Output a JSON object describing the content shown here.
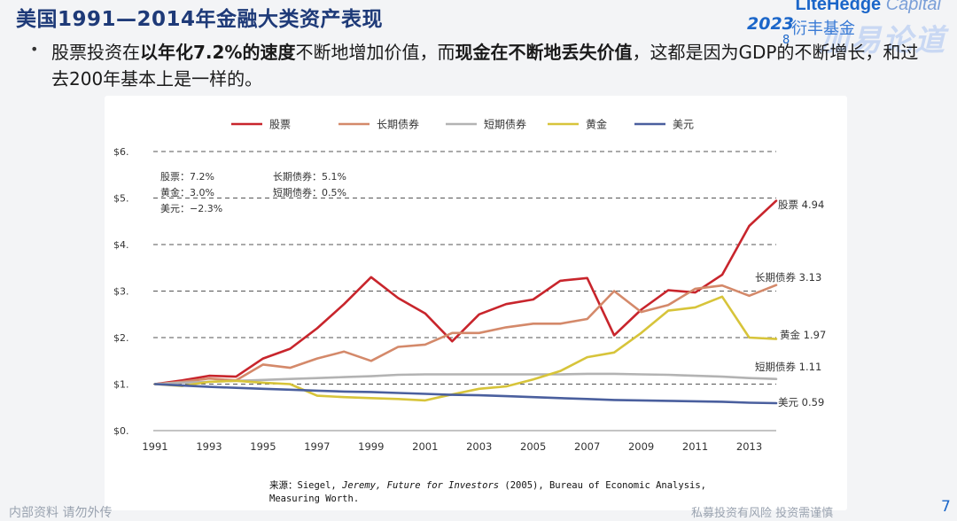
{
  "title": "美国1991—2014年金融大类资产表现",
  "logo": {
    "brand": "LiteHedge",
    "brand_suffix": "Capital",
    "year": "2023",
    "year_sub": "8",
    "cn": "衍丰基金",
    "watermark": "加易论道"
  },
  "bullet": {
    "t1": "股票投资在",
    "t2": "以年化7.2%的速度",
    "t3": "不断地增加价值，而",
    "t4": "现金在不断地丢失价值",
    "t5": "，这都是因为GDP的不断增长，和过去200年基本上是一样的。"
  },
  "colors": {
    "stocks": "#c8252c",
    "long_bonds": "#d4896a",
    "short_bonds": "#b3b3b3",
    "gold": "#d7c43a",
    "dollar": "#4a5f9e"
  },
  "chart_data": {
    "type": "line",
    "legend_position": "top",
    "grid": true,
    "ylim": [
      0,
      6
    ],
    "y_ticks": [
      "$0.",
      "$1.",
      "$2.",
      "$3.",
      "$4.",
      "$5.",
      "$6."
    ],
    "x_ticks": [
      "1991",
      "1993",
      "1995",
      "1997",
      "1999",
      "2001",
      "2003",
      "2005",
      "2007",
      "2009",
      "2011",
      "2013"
    ],
    "x": [
      1991,
      1992,
      1993,
      1994,
      1995,
      1996,
      1997,
      1998,
      1999,
      2000,
      2001,
      2002,
      2003,
      2004,
      2005,
      2006,
      2007,
      2008,
      2009,
      2010,
      2011,
      2012,
      2013,
      2014
    ],
    "series": [
      {
        "name": "股票",
        "color_key": "stocks",
        "end_label": "股票 4.94",
        "values": [
          1.0,
          1.08,
          1.18,
          1.16,
          1.55,
          1.76,
          2.2,
          2.72,
          3.3,
          2.85,
          2.52,
          1.92,
          2.5,
          2.72,
          2.82,
          3.22,
          3.28,
          2.05,
          2.6,
          3.02,
          2.97,
          3.35,
          4.4,
          4.94
        ]
      },
      {
        "name": "长期债券",
        "color_key": "long_bonds",
        "end_label": "长期债券 3.13",
        "values": [
          1.0,
          1.05,
          1.12,
          1.08,
          1.42,
          1.35,
          1.55,
          1.7,
          1.5,
          1.8,
          1.85,
          2.1,
          2.1,
          2.22,
          2.3,
          2.3,
          2.4,
          3.0,
          2.55,
          2.7,
          3.05,
          3.12,
          2.9,
          3.13
        ]
      },
      {
        "name": "短期债券",
        "color_key": "short_bonds",
        "end_label": "短期债券 1.11",
        "values": [
          1.0,
          1.03,
          1.05,
          1.07,
          1.09,
          1.11,
          1.13,
          1.15,
          1.17,
          1.2,
          1.21,
          1.21,
          1.21,
          1.21,
          1.21,
          1.21,
          1.22,
          1.22,
          1.21,
          1.2,
          1.18,
          1.16,
          1.13,
          1.11
        ]
      },
      {
        "name": "黄金",
        "color_key": "gold",
        "end_label": "黄金 1.97",
        "values": [
          1.0,
          0.96,
          1.05,
          1.07,
          1.03,
          1.0,
          0.75,
          0.72,
          0.7,
          0.68,
          0.65,
          0.78,
          0.9,
          0.95,
          1.1,
          1.28,
          1.58,
          1.68,
          2.1,
          2.58,
          2.65,
          2.88,
          2.0,
          1.97
        ]
      },
      {
        "name": "美元",
        "color_key": "dollar",
        "end_label": "美元 0.59",
        "values": [
          1.0,
          0.97,
          0.94,
          0.92,
          0.9,
          0.88,
          0.86,
          0.84,
          0.83,
          0.81,
          0.79,
          0.77,
          0.76,
          0.74,
          0.72,
          0.7,
          0.68,
          0.66,
          0.65,
          0.64,
          0.63,
          0.62,
          0.6,
          0.59
        ]
      }
    ],
    "annotations": [
      {
        "text": "股票：7.2%"
      },
      {
        "text": "黄金：3.0%"
      },
      {
        "text": "美元：−2.3%"
      },
      {
        "text": "长期债券：5.1%"
      },
      {
        "text": "短期债券：0.5%"
      }
    ],
    "source": {
      "prefix": "来源：Siegel,",
      "author_italic": "Jeremy, Future for Investors",
      "rest": "(2005), Bureau of Economic Analysis,",
      "line2": "Measuring Worth."
    }
  },
  "footer": {
    "left": "内部资料 请勿外传",
    "right": "私募投资有风险 投资需谨慎",
    "page": "7"
  }
}
